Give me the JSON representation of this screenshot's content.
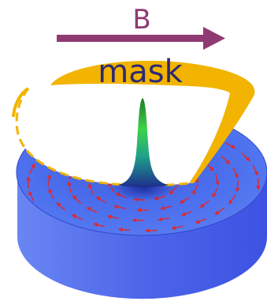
{
  "labels": {
    "field": "B",
    "mask": "mask"
  },
  "colors": {
    "field_arrow": "#8f3a72",
    "mask_ring": "#f2b400",
    "mask_text": "#2e2a70",
    "disk_top": "#4c72f0",
    "disk_side": "#4a62e8",
    "spin_arrows": "#e0282a",
    "peak_top": "#1f9a2a",
    "peak_base": "#1e2d8c"
  },
  "icons": {
    "field_arrow": "arrow-right-icon"
  }
}
